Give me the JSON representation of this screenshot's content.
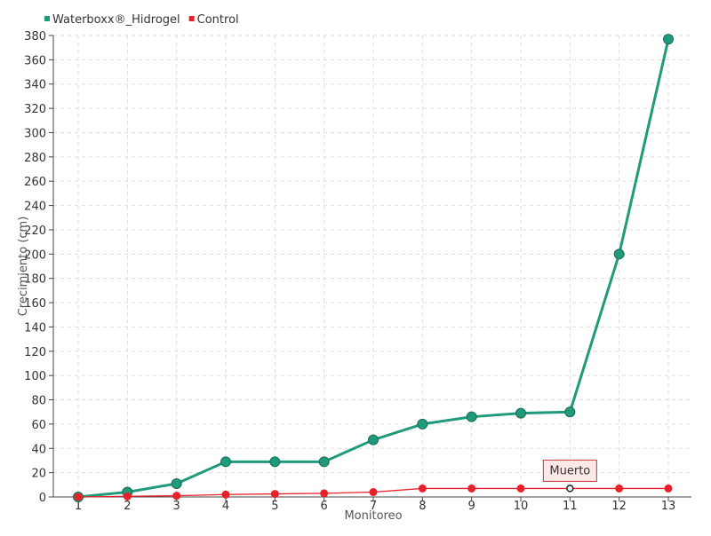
{
  "chart_data": {
    "type": "line",
    "x": [
      1,
      2,
      3,
      4,
      5,
      6,
      7,
      8,
      9,
      10,
      11,
      12,
      13
    ],
    "xlabel": "Monitoreo",
    "ylabel": "Crecimiento (cm)",
    "ylim": [
      0,
      380
    ],
    "yticks": [
      0,
      20,
      40,
      60,
      80,
      100,
      120,
      140,
      160,
      180,
      200,
      220,
      240,
      260,
      280,
      300,
      320,
      340,
      360,
      380
    ],
    "grid": true,
    "legend_position": "top-left",
    "series": [
      {
        "name": "Waterboxx®_Hidrogel",
        "color": "#1f9a7a",
        "values": [
          0,
          4,
          11,
          29,
          29,
          29,
          47,
          60,
          66,
          69,
          70,
          200,
          377
        ]
      },
      {
        "name": "Control",
        "color": "#e8202a",
        "values": [
          0,
          0.5,
          1,
          2,
          2.5,
          3,
          4,
          7,
          7,
          7,
          7,
          7,
          7
        ]
      }
    ],
    "annotations": [
      {
        "series": 1,
        "x": 11,
        "text": "Muerto"
      }
    ]
  }
}
